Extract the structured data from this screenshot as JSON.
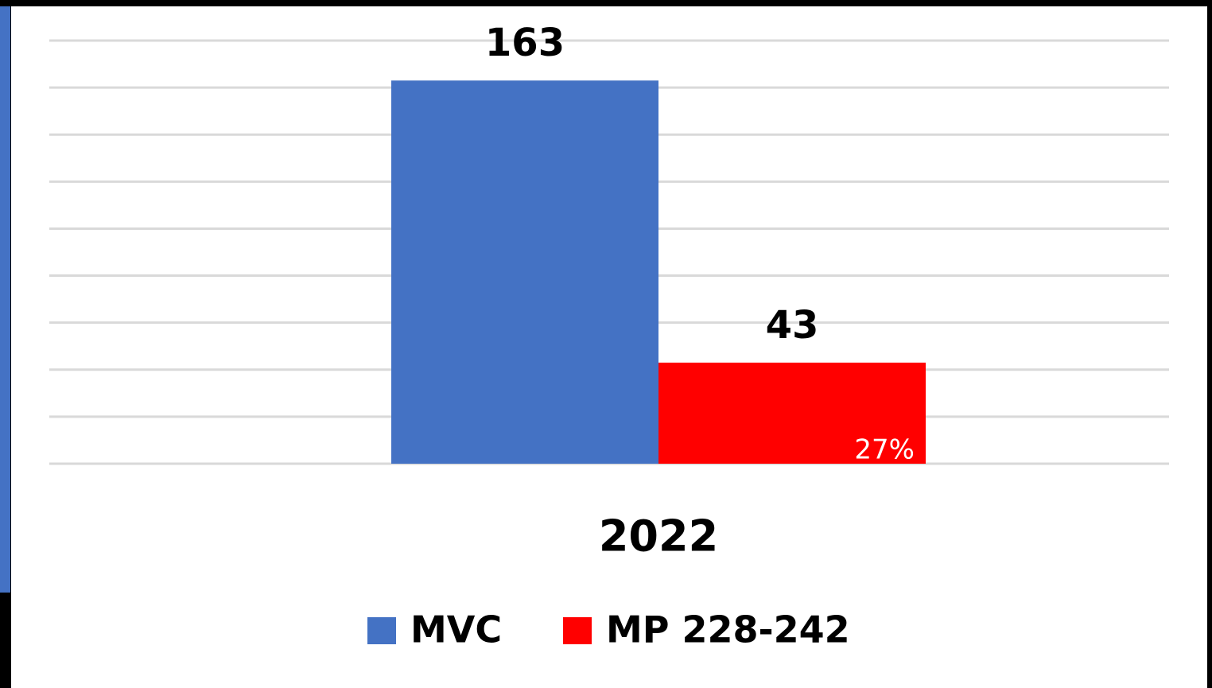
{
  "chart_data": {
    "type": "bar",
    "categories": [
      "2022"
    ],
    "series": [
      {
        "name": "MVC",
        "color": "#4472c4",
        "values": [
          163
        ]
      },
      {
        "name": "MP 228-242",
        "color": "#ff0000",
        "values": [
          43
        ]
      }
    ],
    "annotation": "27%",
    "ylim": [
      0,
      180
    ],
    "yticks": [
      0,
      20,
      40,
      60,
      80,
      100,
      120,
      140,
      160,
      180
    ],
    "grid": true,
    "legend": "bottom"
  }
}
